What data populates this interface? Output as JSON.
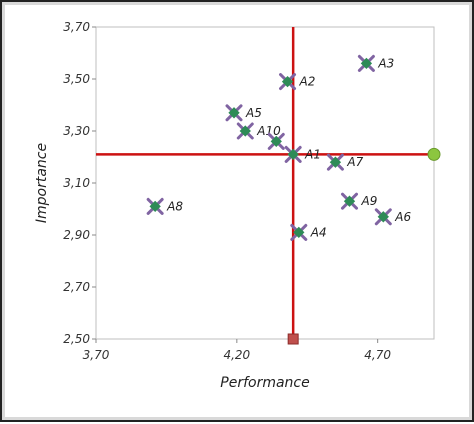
{
  "chart_data": {
    "type": "scatter",
    "title": "",
    "xlabel": "Performance",
    "ylabel": "Importance",
    "xlim": [
      3.7,
      4.9
    ],
    "ylim": [
      2.5,
      3.7
    ],
    "x_ticks": [
      "3,70",
      "4,20",
      "4,70"
    ],
    "x_tick_values": [
      3.7,
      4.2,
      4.7
    ],
    "y_ticks": [
      "2,50",
      "2,70",
      "2,90",
      "3,10",
      "3,30",
      "3,50",
      "3,70"
    ],
    "y_tick_values": [
      2.5,
      2.7,
      2.9,
      3.1,
      3.3,
      3.5,
      3.7
    ],
    "grid": false,
    "reference_lines": {
      "x_mean": 4.4,
      "y_mean": 3.21,
      "color": "#cc1111",
      "x_line_marker_color": "#c0504d",
      "y_line_marker_color": "#8cc63f"
    },
    "marker_colors": {
      "fill": "#2e8b57",
      "cross": "#8064a2"
    },
    "points": [
      {
        "label": "A1",
        "x": 4.4,
        "y": 3.21
      },
      {
        "label": "A2",
        "x": 4.38,
        "y": 3.49
      },
      {
        "label": "A3",
        "x": 4.66,
        "y": 3.56
      },
      {
        "label": "A4",
        "x": 4.42,
        "y": 2.91
      },
      {
        "label": "A5",
        "x": 4.19,
        "y": 3.37
      },
      {
        "label": "A6",
        "x": 4.72,
        "y": 2.97
      },
      {
        "label": "A7",
        "x": 4.55,
        "y": 3.18
      },
      {
        "label": "A8",
        "x": 3.91,
        "y": 3.01
      },
      {
        "label": "A9",
        "x": 4.6,
        "y": 3.03
      },
      {
        "label": "A10",
        "x": 4.23,
        "y": 3.3
      },
      {
        "label": "",
        "x": 4.34,
        "y": 3.26
      }
    ]
  }
}
